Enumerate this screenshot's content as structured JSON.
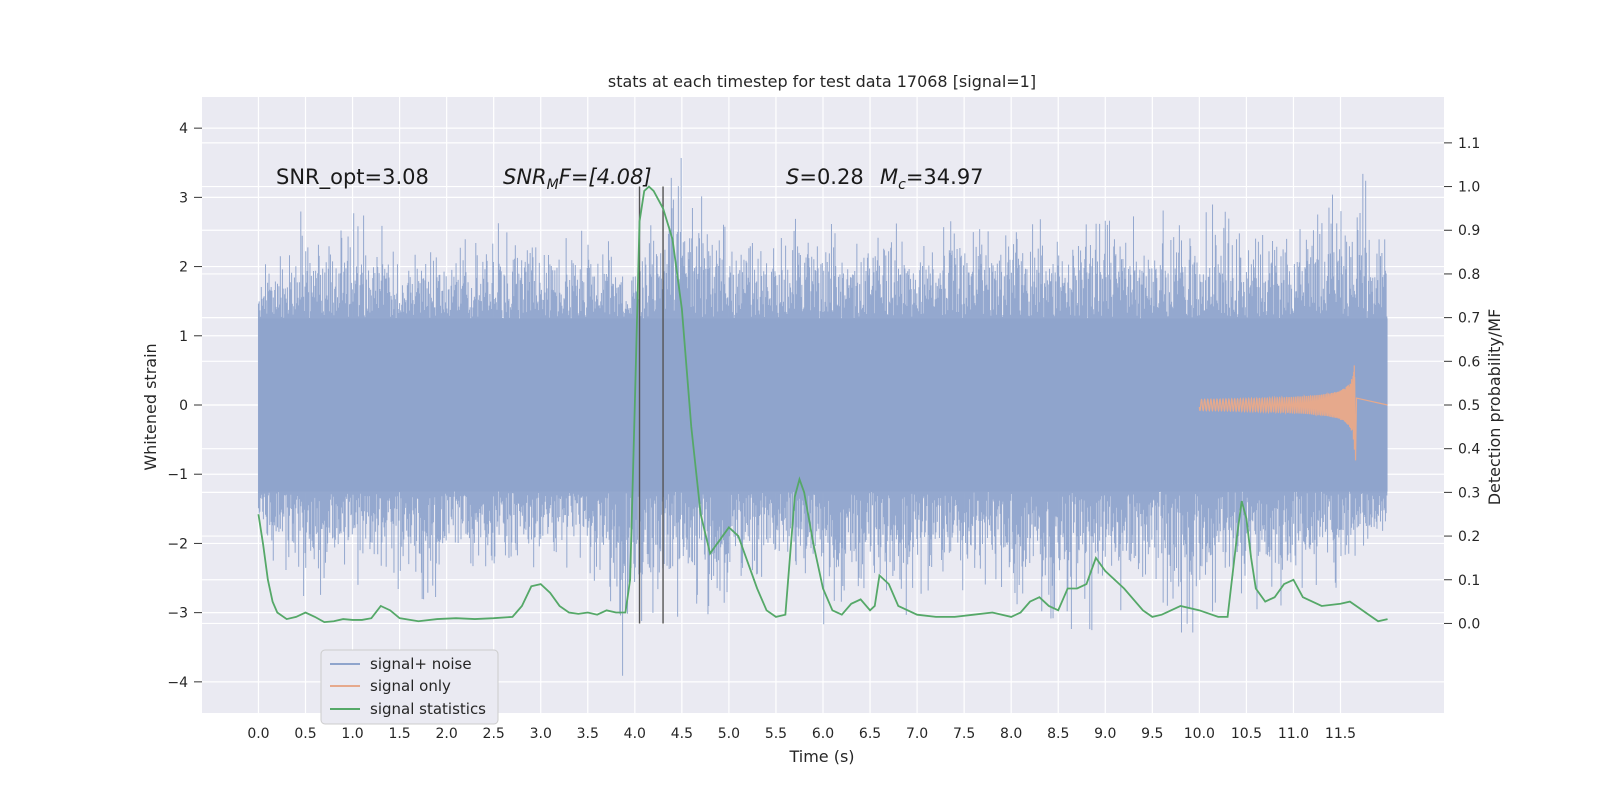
{
  "chart_data": {
    "type": "line",
    "title": "stats at each timestep for test data 17068 [signal=1]",
    "xlabel": "Time (s)",
    "ylabel": "Whitened strain",
    "y2label": "Detection probability/MF",
    "xlim": [
      -0.6,
      12.6
    ],
    "ylim": [
      -4.45,
      4.45
    ],
    "y2lim": [
      -0.205,
      1.205
    ],
    "xticks": [
      0.0,
      0.5,
      1.0,
      1.5,
      2.0,
      2.5,
      3.0,
      3.5,
      4.0,
      4.5,
      5.0,
      5.5,
      6.0,
      6.5,
      7.0,
      7.5,
      8.0,
      8.5,
      9.0,
      9.5,
      10.0,
      10.5,
      11.0,
      11.5
    ],
    "xtick_labels": [
      "0.0",
      "0.5",
      "1.0",
      "1.5",
      "2.0",
      "2.5",
      "3.0",
      "3.5",
      "4.0",
      "4.5",
      "5.0",
      "5.5",
      "6.0",
      "6.5",
      "7.0",
      "7.5",
      "8.0",
      "8.5",
      "9.0",
      "9.5",
      "10.0",
      "10.5",
      "11.0",
      "11.5"
    ],
    "yticks": [
      -4,
      -3,
      -2,
      -1,
      0,
      1,
      2,
      3,
      4
    ],
    "ytick_labels": [
      "−4",
      "−3",
      "−2",
      "−1",
      "0",
      "1",
      "2",
      "3",
      "4"
    ],
    "y2ticks": [
      0.0,
      0.1,
      0.2,
      0.3,
      0.4,
      0.5,
      0.6,
      0.7,
      0.8,
      0.9,
      1.0,
      1.1
    ],
    "y2tick_labels": [
      "0.0",
      "0.1",
      "0.2",
      "0.3",
      "0.4",
      "0.5",
      "0.6",
      "0.7",
      "0.8",
      "0.9",
      "1.0",
      "1.1"
    ],
    "grid": true,
    "legend_position": "lower-left",
    "annotations": {
      "snr_opt": "SNR_opt=3.08",
      "snr_mf_sym": "SNR",
      "snr_mf_sub": "M",
      "snr_mf_rest": "F=[4.08]",
      "s_sym": "S",
      "s_rest": "=0.28",
      "mc_sym": "M",
      "mc_sub": "c",
      "mc_rest": "=34.97"
    },
    "vertical_lines": [
      4.05,
      4.3
    ],
    "series": [
      {
        "name": "signal+ noise",
        "axis": "left",
        "color": "#8fa4cc",
        "duration": 12.0,
        "upper_envelope": [
          [
            0.0,
            2.0
          ],
          [
            0.1,
            2.5
          ],
          [
            0.3,
            2.3
          ],
          [
            0.45,
            3.2
          ],
          [
            0.8,
            2.5
          ],
          [
            1.0,
            3.4
          ],
          [
            1.5,
            2.3
          ],
          [
            2.0,
            2.5
          ],
          [
            2.5,
            2.7
          ],
          [
            3.0,
            2.9
          ],
          [
            3.5,
            2.7
          ],
          [
            4.0,
            2.4
          ],
          [
            4.5,
            4.1
          ],
          [
            5.0,
            2.8
          ],
          [
            5.5,
            2.7
          ],
          [
            5.75,
            3.2
          ],
          [
            6.0,
            2.8
          ],
          [
            6.5,
            2.9
          ],
          [
            7.0,
            2.7
          ],
          [
            7.5,
            3.1
          ],
          [
            8.0,
            3.2
          ],
          [
            8.5,
            2.9
          ],
          [
            9.0,
            3.0
          ],
          [
            9.5,
            2.9
          ],
          [
            10.0,
            3.2
          ],
          [
            10.5,
            2.9
          ],
          [
            11.0,
            3.1
          ],
          [
            11.5,
            3.3
          ],
          [
            11.7,
            3.8
          ],
          [
            12.0,
            2.5
          ]
        ],
        "lower_envelope": [
          [
            0.0,
            -2.0
          ],
          [
            0.5,
            -3.2
          ],
          [
            1.0,
            -2.7
          ],
          [
            1.5,
            -2.9
          ],
          [
            1.85,
            -3.5
          ],
          [
            2.0,
            -2.7
          ],
          [
            2.5,
            -2.6
          ],
          [
            3.0,
            -2.6
          ],
          [
            3.5,
            -2.8
          ],
          [
            3.9,
            -4.05
          ],
          [
            4.2,
            -3.6
          ],
          [
            4.5,
            -3.4
          ],
          [
            5.0,
            -3.2
          ],
          [
            5.5,
            -2.8
          ],
          [
            6.0,
            -3.4
          ],
          [
            6.5,
            -3.0
          ],
          [
            7.0,
            -3.2
          ],
          [
            7.5,
            -2.9
          ],
          [
            8.0,
            -3.3
          ],
          [
            8.5,
            -3.5
          ],
          [
            8.65,
            -3.6
          ],
          [
            9.0,
            -3.5
          ],
          [
            9.5,
            -3.1
          ],
          [
            9.9,
            -3.7
          ],
          [
            10.5,
            -3.3
          ],
          [
            11.0,
            -3.0
          ],
          [
            11.5,
            -2.9
          ],
          [
            12.0,
            -2.1
          ]
        ]
      },
      {
        "name": "signal only",
        "axis": "left",
        "color": "#e6a98c",
        "chirp_peak_time": 11.65,
        "chirp_peak_amplitude": 0.75,
        "chirp_min_amplitude": -0.8
      },
      {
        "name": "signal statistics",
        "axis": "right",
        "color": "#55a868",
        "x": [
          0.0,
          0.05,
          0.1,
          0.15,
          0.2,
          0.3,
          0.4,
          0.5,
          0.6,
          0.7,
          0.8,
          0.9,
          1.0,
          1.1,
          1.2,
          1.3,
          1.4,
          1.5,
          1.7,
          1.9,
          2.1,
          2.3,
          2.5,
          2.7,
          2.8,
          2.9,
          3.0,
          3.1,
          3.2,
          3.3,
          3.4,
          3.5,
          3.6,
          3.7,
          3.8,
          3.9,
          3.95,
          4.0,
          4.05,
          4.1,
          4.15,
          4.2,
          4.3,
          4.4,
          4.5,
          4.6,
          4.7,
          4.8,
          4.9,
          5.0,
          5.1,
          5.2,
          5.3,
          5.4,
          5.5,
          5.6,
          5.7,
          5.75,
          5.8,
          5.9,
          6.0,
          6.1,
          6.2,
          6.3,
          6.4,
          6.5,
          6.55,
          6.6,
          6.7,
          6.8,
          7.0,
          7.2,
          7.4,
          7.6,
          7.8,
          8.0,
          8.1,
          8.2,
          8.3,
          8.4,
          8.5,
          8.6,
          8.7,
          8.8,
          8.9,
          9.0,
          9.2,
          9.4,
          9.5,
          9.6,
          9.8,
          10.0,
          10.2,
          10.3,
          10.4,
          10.45,
          10.5,
          10.55,
          10.6,
          10.7,
          10.8,
          10.9,
          11.0,
          11.1,
          11.3,
          11.5,
          11.6,
          11.7,
          11.8,
          11.9,
          12.0
        ],
        "y": [
          0.25,
          0.18,
          0.1,
          0.05,
          0.025,
          0.01,
          0.015,
          0.025,
          0.015,
          0.003,
          0.005,
          0.01,
          0.008,
          0.008,
          0.012,
          0.04,
          0.03,
          0.012,
          0.005,
          0.01,
          0.012,
          0.01,
          0.012,
          0.015,
          0.04,
          0.085,
          0.09,
          0.07,
          0.04,
          0.025,
          0.022,
          0.025,
          0.02,
          0.03,
          0.025,
          0.025,
          0.1,
          0.5,
          0.92,
          0.99,
          1.0,
          0.99,
          0.95,
          0.88,
          0.72,
          0.45,
          0.25,
          0.16,
          0.19,
          0.22,
          0.2,
          0.14,
          0.08,
          0.03,
          0.015,
          0.02,
          0.29,
          0.33,
          0.3,
          0.18,
          0.08,
          0.03,
          0.02,
          0.045,
          0.055,
          0.03,
          0.04,
          0.11,
          0.09,
          0.04,
          0.02,
          0.015,
          0.015,
          0.02,
          0.025,
          0.015,
          0.025,
          0.05,
          0.06,
          0.04,
          0.03,
          0.08,
          0.08,
          0.09,
          0.15,
          0.12,
          0.08,
          0.03,
          0.015,
          0.02,
          0.04,
          0.03,
          0.015,
          0.015,
          0.2,
          0.28,
          0.24,
          0.15,
          0.08,
          0.05,
          0.06,
          0.09,
          0.1,
          0.06,
          0.04,
          0.045,
          0.05,
          0.035,
          0.02,
          0.005,
          0.01
        ]
      }
    ]
  }
}
